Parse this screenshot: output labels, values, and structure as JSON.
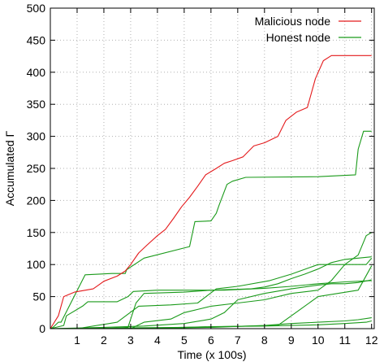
{
  "chart_data": {
    "type": "line",
    "title": "",
    "xlabel": "Time (x 100s)",
    "ylabel": "Accumulated  Γ",
    "xlim": [
      0,
      12.1
    ],
    "ylim": [
      0,
      500
    ],
    "xticks": [
      1,
      2,
      3,
      4,
      5,
      6,
      7,
      8,
      9,
      10,
      11,
      12
    ],
    "yticks": [
      0,
      50,
      100,
      150,
      200,
      250,
      300,
      350,
      400,
      450,
      500
    ],
    "grid": "dotted",
    "legend_position": "top-right",
    "legend": [
      {
        "label": "Malicious node",
        "color": "#e41a1c"
      },
      {
        "label": "Honest node",
        "color": "#1a9a1a"
      }
    ],
    "series": [
      {
        "name": "Malicious node",
        "color": "#e41a1c",
        "x": [
          0,
          0.3,
          0.5,
          0.9,
          1.6,
          1.8,
          2.0,
          2.5,
          2.8,
          3.0,
          3.3,
          3.6,
          4.0,
          4.3,
          4.6,
          4.9,
          5.2,
          5.5,
          5.8,
          6.2,
          6.5,
          6.8,
          7.2,
          7.6,
          8.0,
          8.5,
          8.8,
          9.2,
          9.6,
          9.9,
          10.2,
          10.5,
          11.6,
          12.0
        ],
        "y": [
          0,
          20,
          50,
          57,
          62,
          68,
          74,
          82,
          90,
          100,
          118,
          130,
          145,
          155,
          172,
          190,
          205,
          222,
          240,
          250,
          258,
          262,
          268,
          285,
          290,
          300,
          325,
          338,
          345,
          390,
          418,
          426,
          426,
          426
        ]
      },
      {
        "name": "",
        "color": "#1a9a1a",
        "x": [
          0,
          0.1,
          0.3,
          0.4,
          1.3,
          2.3,
          2.8,
          2.85,
          3.5,
          5.2,
          5.4,
          6.0,
          6.2,
          6.3,
          6.6,
          6.8,
          7.3,
          10.0,
          11.4,
          11.5,
          11.7,
          12.0
        ],
        "y": [
          0,
          2,
          10,
          10,
          84,
          86,
          86,
          92,
          110,
          128,
          167,
          168,
          180,
          192,
          225,
          230,
          236,
          237,
          240,
          280,
          308,
          308
        ]
      },
      {
        "name": "",
        "color": "#1a9a1a",
        "x": [
          0,
          0.5,
          0.6,
          1.2,
          1.4,
          2.5,
          2.9,
          3.1,
          4.0,
          5.0,
          6.5,
          8.0,
          9.0,
          10.0,
          11.0,
          12.0
        ],
        "y": [
          0,
          5,
          20,
          35,
          42,
          42,
          50,
          58,
          60,
          60,
          60,
          63,
          66,
          70,
          73,
          75
        ]
      },
      {
        "name": "",
        "color": "#1a9a1a",
        "x": [
          0,
          2.0,
          2.9,
          3.2,
          3.5,
          5.0,
          6.0,
          7.5,
          8.0,
          8.5,
          9.0,
          9.5,
          10.0,
          10.5,
          11.0,
          11.5,
          12.0
        ],
        "y": [
          0,
          0,
          2,
          40,
          55,
          57,
          60,
          62,
          65,
          70,
          78,
          85,
          93,
          103,
          108,
          110,
          112
        ]
      },
      {
        "name": "",
        "color": "#1a9a1a",
        "x": [
          0,
          1.0,
          2.5,
          3.3,
          4.5,
          5.5,
          6.2,
          7.0,
          8.2,
          9.0,
          10.0,
          11.0,
          11.8,
          12.0
        ],
        "y": [
          0,
          0,
          10,
          35,
          37,
          40,
          62,
          66,
          75,
          85,
          100,
          100,
          100,
          110
        ]
      },
      {
        "name": "",
        "color": "#1a9a1a",
        "x": [
          0,
          3.0,
          3.5,
          4.5,
          5.0,
          5.5,
          6.0,
          7.0,
          8.0,
          9.0,
          10.0,
          10.5,
          11.0,
          11.5,
          11.8,
          12.0
        ],
        "y": [
          0,
          0,
          10,
          15,
          25,
          30,
          35,
          40,
          45,
          55,
          60,
          75,
          100,
          115,
          145,
          150
        ]
      },
      {
        "name": "",
        "color": "#1a9a1a",
        "x": [
          0,
          2.0,
          3.5,
          5.0,
          6.0,
          6.5,
          7.0,
          8.0,
          9.0,
          10.0,
          10.5,
          11.0,
          11.5,
          12.0
        ],
        "y": [
          0,
          2,
          4,
          8,
          15,
          25,
          45,
          55,
          62,
          68,
          70,
          70,
          72,
          76
        ]
      },
      {
        "name": "",
        "color": "#1a9a1a",
        "x": [
          0,
          3.0,
          6.0,
          8.0,
          9.0,
          10.0,
          11.0,
          11.5,
          12.0
        ],
        "y": [
          0,
          0,
          2,
          5,
          8,
          10,
          12,
          14,
          17
        ]
      },
      {
        "name": "",
        "color": "#1a9a1a",
        "x": [
          0,
          2.0,
          4.0,
          6.0,
          8.0,
          10.0,
          11.0,
          11.8,
          12.0
        ],
        "y": [
          0,
          0,
          1,
          3,
          4,
          6,
          8,
          10,
          12
        ]
      },
      {
        "name": "",
        "color": "#1a9a1a",
        "x": [
          0,
          2.5,
          5.0,
          7.5,
          8.5,
          10.0,
          11.5,
          12.0
        ],
        "y": [
          0,
          1,
          2,
          4,
          5,
          50,
          60,
          98
        ]
      }
    ]
  }
}
